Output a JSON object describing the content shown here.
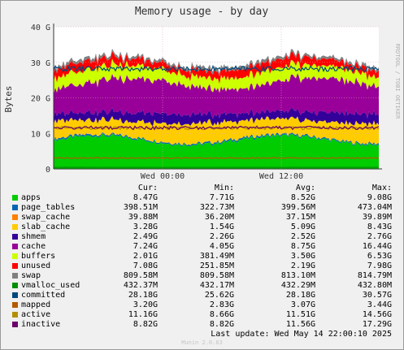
{
  "title": "Memory usage - by day",
  "ylabel": "Bytes",
  "watermark": "RRDTOOL / TOBI OETIKER",
  "footer": {
    "last_update": "Last update: Wed May 14 22:00:10 2025",
    "version": "Munin 2.0.63"
  },
  "legend_headers": {
    "cur": "Cur:",
    "min": "Min:",
    "avg": "Avg:",
    "max": "Max:"
  },
  "chart_data": {
    "type": "area",
    "title": "Memory usage - by day",
    "ylabel": "Bytes",
    "ylim": [
      0,
      40
    ],
    "yunit": "G",
    "yticks": [
      "0",
      "10 G",
      "20 G",
      "30 G",
      "40 G"
    ],
    "xticks": [
      "Wed 00:00",
      "Wed 12:00"
    ],
    "grid": true,
    "series": [
      {
        "name": "apps",
        "color": "#00cc00",
        "cur": "8.47G",
        "min": "7.71G",
        "avg": "8.52G",
        "max": "9.08G",
        "level": 8.5,
        "kind": "stack"
      },
      {
        "name": "page_tables",
        "color": "#0066b3",
        "cur": "398.51M",
        "min": "322.73M",
        "avg": "399.56M",
        "max": "473.04M",
        "level": 0.4,
        "kind": "stack"
      },
      {
        "name": "swap_cache",
        "color": "#ff8000",
        "cur": "39.88M",
        "min": "36.20M",
        "avg": "37.15M",
        "max": "39.89M",
        "level": 0.04,
        "kind": "stack"
      },
      {
        "name": "slab_cache",
        "color": "#ffcc00",
        "cur": "3.28G",
        "min": "1.54G",
        "avg": "5.09G",
        "max": "8.43G",
        "level": 5.1,
        "kind": "stack"
      },
      {
        "name": "shmem",
        "color": "#330099",
        "cur": "2.49G",
        "min": "2.26G",
        "avg": "2.52G",
        "max": "2.76G",
        "level": 2.5,
        "kind": "stack"
      },
      {
        "name": "cache",
        "color": "#990099",
        "cur": "7.24G",
        "min": "4.05G",
        "avg": "8.75G",
        "max": "16.44G",
        "level": 8.75,
        "kind": "stack"
      },
      {
        "name": "buffers",
        "color": "#ccff00",
        "cur": "2.01G",
        "min": "381.49M",
        "avg": "3.50G",
        "max": "6.53G",
        "level": 3.5,
        "kind": "stack"
      },
      {
        "name": "unused",
        "color": "#ff0000",
        "cur": "7.08G",
        "min": "251.85M",
        "avg": "2.19G",
        "max": "7.98G",
        "level": 2.19,
        "kind": "stack"
      },
      {
        "name": "swap",
        "color": "#808080",
        "cur": "809.58M",
        "min": "809.58M",
        "avg": "813.10M",
        "max": "814.79M",
        "level": 0.81,
        "kind": "stack"
      },
      {
        "name": "vmalloc_used",
        "color": "#008f00",
        "cur": "432.37M",
        "min": "432.17M",
        "avg": "432.29M",
        "max": "432.80M",
        "level": 0.43,
        "kind": "line"
      },
      {
        "name": "committed",
        "color": "#00487d",
        "cur": "28.18G",
        "min": "25.62G",
        "avg": "28.18G",
        "max": "30.57G",
        "level": 28.18,
        "kind": "line"
      },
      {
        "name": "mapped",
        "color": "#b35a00",
        "cur": "3.20G",
        "min": "2.83G",
        "avg": "3.07G",
        "max": "3.44G",
        "level": 3.07,
        "kind": "line"
      },
      {
        "name": "active",
        "color": "#b38f00",
        "cur": "11.16G",
        "min": "8.66G",
        "avg": "11.51G",
        "max": "14.56G",
        "level": 11.51,
        "kind": "line"
      },
      {
        "name": "inactive",
        "color": "#6b006b",
        "cur": "8.82G",
        "min": "8.82G",
        "avg": "11.56G",
        "max": "17.29G",
        "level": 11.56,
        "kind": "line"
      }
    ]
  }
}
